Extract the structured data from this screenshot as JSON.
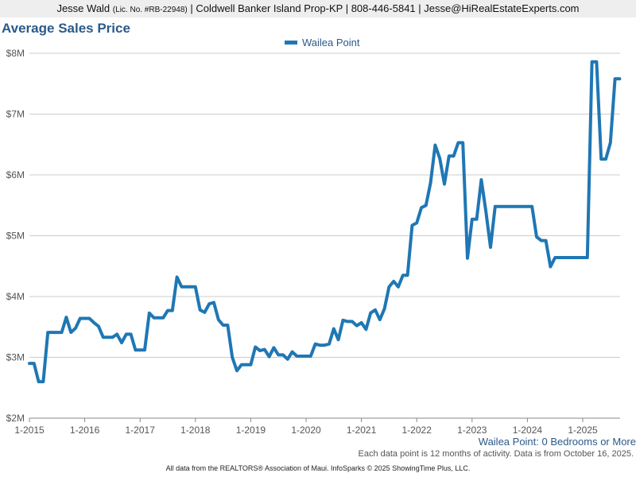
{
  "header": {
    "name": "Jesse Wald",
    "license": "(Lic. No. #RB-22948)",
    "company_phone_email": "| Coldwell Banker Island Prop-KP | 808-446-5841 | Jesse@HiRealEstateExperts.com"
  },
  "subtitle": "Wailea Point: 0 Bedrooms or More",
  "note": "Each data point is 12 months of activity. Data is from October 16, 2025.",
  "footer": "All data from the REALTORS® Association of Maui. InfoSparks © 2025 ShowingTime Plus, LLC.",
  "chart_data": {
    "type": "line",
    "title": "Average Sales Price",
    "legend_position": "top-center",
    "grid": true,
    "colors": {
      "series": "#1f77b4",
      "grid": "#cccccc",
      "title": "#2a5a8a"
    },
    "ylim": [
      2000000,
      8000000
    ],
    "xlim": [
      "2015-01",
      "2025-09"
    ],
    "y_tick_labels": [
      {
        "value": 2000000,
        "label": "$2M"
      },
      {
        "value": 3000000,
        "label": "$3M"
      },
      {
        "value": 4000000,
        "label": "$4M"
      },
      {
        "value": 5000000,
        "label": "$5M"
      },
      {
        "value": 6000000,
        "label": "$6M"
      },
      {
        "value": 7000000,
        "label": "$7M"
      },
      {
        "value": 8000000,
        "label": "$8M"
      }
    ],
    "x_tick_labels": [
      {
        "date": "2015-01",
        "label": "1-2015"
      },
      {
        "date": "2016-01",
        "label": "1-2016"
      },
      {
        "date": "2017-01",
        "label": "1-2017"
      },
      {
        "date": "2018-01",
        "label": "1-2018"
      },
      {
        "date": "2019-01",
        "label": "1-2019"
      },
      {
        "date": "2020-01",
        "label": "1-2020"
      },
      {
        "date": "2021-01",
        "label": "1-2021"
      },
      {
        "date": "2022-01",
        "label": "1-2022"
      },
      {
        "date": "2023-01",
        "label": "1-2023"
      },
      {
        "date": "2024-01",
        "label": "1-2024"
      },
      {
        "date": "2025-01",
        "label": "1-2025"
      }
    ],
    "series": [
      {
        "name": "Wailea Point",
        "points": [
          [
            "2015-01",
            2900000
          ],
          [
            "2015-02",
            2900000
          ],
          [
            "2015-03",
            2600000
          ],
          [
            "2015-04",
            2600000
          ],
          [
            "2015-05",
            3410000
          ],
          [
            "2015-06",
            3410000
          ],
          [
            "2015-07",
            3410000
          ],
          [
            "2015-08",
            3410000
          ],
          [
            "2015-09",
            3660000
          ],
          [
            "2015-10",
            3410000
          ],
          [
            "2015-11",
            3480000
          ],
          [
            "2015-12",
            3640000
          ],
          [
            "2016-01",
            3640000
          ],
          [
            "2016-02",
            3640000
          ],
          [
            "2016-03",
            3570000
          ],
          [
            "2016-04",
            3510000
          ],
          [
            "2016-05",
            3330000
          ],
          [
            "2016-06",
            3330000
          ],
          [
            "2016-07",
            3330000
          ],
          [
            "2016-08",
            3380000
          ],
          [
            "2016-09",
            3240000
          ],
          [
            "2016-10",
            3380000
          ],
          [
            "2016-11",
            3380000
          ],
          [
            "2016-12",
            3120000
          ],
          [
            "2017-01",
            3120000
          ],
          [
            "2017-02",
            3120000
          ],
          [
            "2017-03",
            3730000
          ],
          [
            "2017-04",
            3650000
          ],
          [
            "2017-05",
            3650000
          ],
          [
            "2017-06",
            3650000
          ],
          [
            "2017-07",
            3770000
          ],
          [
            "2017-08",
            3770000
          ],
          [
            "2017-09",
            4320000
          ],
          [
            "2017-10",
            4160000
          ],
          [
            "2017-11",
            4160000
          ],
          [
            "2017-12",
            4160000
          ],
          [
            "2018-01",
            4160000
          ],
          [
            "2018-02",
            3780000
          ],
          [
            "2018-03",
            3740000
          ],
          [
            "2018-04",
            3880000
          ],
          [
            "2018-05",
            3900000
          ],
          [
            "2018-06",
            3620000
          ],
          [
            "2018-07",
            3530000
          ],
          [
            "2018-08",
            3530000
          ],
          [
            "2018-09",
            3000000
          ],
          [
            "2018-10",
            2780000
          ],
          [
            "2018-11",
            2880000
          ],
          [
            "2018-12",
            2880000
          ],
          [
            "2019-01",
            2880000
          ],
          [
            "2019-02",
            3170000
          ],
          [
            "2019-03",
            3110000
          ],
          [
            "2019-04",
            3130000
          ],
          [
            "2019-05",
            3010000
          ],
          [
            "2019-06",
            3160000
          ],
          [
            "2019-07",
            3040000
          ],
          [
            "2019-08",
            3040000
          ],
          [
            "2019-09",
            2970000
          ],
          [
            "2019-10",
            3090000
          ],
          [
            "2019-11",
            3020000
          ],
          [
            "2019-12",
            3020000
          ],
          [
            "2020-01",
            3020000
          ],
          [
            "2020-02",
            3020000
          ],
          [
            "2020-03",
            3220000
          ],
          [
            "2020-04",
            3200000
          ],
          [
            "2020-05",
            3200000
          ],
          [
            "2020-06",
            3220000
          ],
          [
            "2020-07",
            3470000
          ],
          [
            "2020-08",
            3290000
          ],
          [
            "2020-09",
            3610000
          ],
          [
            "2020-10",
            3590000
          ],
          [
            "2020-11",
            3590000
          ],
          [
            "2020-12",
            3520000
          ],
          [
            "2021-01",
            3570000
          ],
          [
            "2021-02",
            3460000
          ],
          [
            "2021-03",
            3730000
          ],
          [
            "2021-04",
            3780000
          ],
          [
            "2021-05",
            3620000
          ],
          [
            "2021-06",
            3800000
          ],
          [
            "2021-07",
            4160000
          ],
          [
            "2021-08",
            4250000
          ],
          [
            "2021-09",
            4160000
          ],
          [
            "2021-10",
            4350000
          ],
          [
            "2021-11",
            4350000
          ],
          [
            "2021-12",
            5170000
          ],
          [
            "2022-01",
            5210000
          ],
          [
            "2022-02",
            5460000
          ],
          [
            "2022-03",
            5500000
          ],
          [
            "2022-04",
            5870000
          ],
          [
            "2022-05",
            6490000
          ],
          [
            "2022-06",
            6270000
          ],
          [
            "2022-07",
            5850000
          ],
          [
            "2022-08",
            6310000
          ],
          [
            "2022-09",
            6310000
          ],
          [
            "2022-10",
            6530000
          ],
          [
            "2022-11",
            6530000
          ],
          [
            "2022-12",
            4630000
          ],
          [
            "2023-01",
            5270000
          ],
          [
            "2023-02",
            5270000
          ],
          [
            "2023-03",
            5920000
          ],
          [
            "2023-04",
            5400000
          ],
          [
            "2023-05",
            4810000
          ],
          [
            "2023-06",
            5480000
          ],
          [
            "2023-07",
            5480000
          ],
          [
            "2023-08",
            5480000
          ],
          [
            "2023-09",
            5480000
          ],
          [
            "2023-10",
            5480000
          ],
          [
            "2023-11",
            5480000
          ],
          [
            "2023-12",
            5480000
          ],
          [
            "2024-01",
            5480000
          ],
          [
            "2024-02",
            5480000
          ],
          [
            "2024-03",
            4980000
          ],
          [
            "2024-04",
            4920000
          ],
          [
            "2024-05",
            4920000
          ],
          [
            "2024-06",
            4490000
          ],
          [
            "2024-07",
            4640000
          ],
          [
            "2024-08",
            4640000
          ],
          [
            "2024-09",
            4640000
          ],
          [
            "2024-10",
            4640000
          ],
          [
            "2024-11",
            4640000
          ],
          [
            "2024-12",
            4640000
          ],
          [
            "2025-01",
            4640000
          ],
          [
            "2025-02",
            4640000
          ],
          [
            "2025-03",
            7860000
          ],
          [
            "2025-04",
            7860000
          ],
          [
            "2025-05",
            6260000
          ],
          [
            "2025-06",
            6260000
          ],
          [
            "2025-07",
            6530000
          ],
          [
            "2025-08",
            7580000
          ],
          [
            "2025-09",
            7580000
          ]
        ]
      }
    ]
  }
}
